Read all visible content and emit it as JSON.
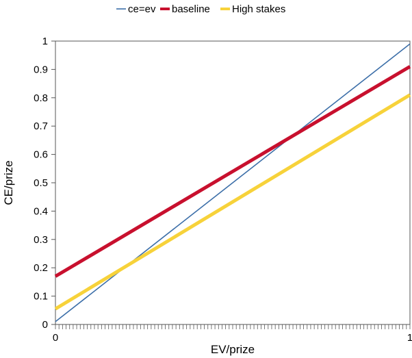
{
  "chart_data": {
    "type": "line",
    "xlabel": "EV/prize",
    "ylabel": "CE/prize",
    "xlim": [
      0,
      1
    ],
    "ylim": [
      0,
      1
    ],
    "x_tick_labels": [
      "0",
      "1"
    ],
    "y_tick_labels": [
      "0",
      "0.1",
      "0.2",
      "0.3",
      "0.4",
      "0.5",
      "0.6",
      "0.7",
      "0.8",
      "0.9",
      "1"
    ],
    "grid": false,
    "legend_position": "top",
    "series": [
      {
        "name": "ce=ev",
        "color": "#3b6ea8",
        "x": [
          0,
          1
        ],
        "values": [
          0.01,
          0.99
        ]
      },
      {
        "name": "baseline",
        "color": "#c8102e",
        "x": [
          0,
          1
        ],
        "values": [
          0.17,
          0.91
        ]
      },
      {
        "name": "High stakes",
        "color": "#f7d23a",
        "x": [
          0,
          1
        ],
        "values": [
          0.055,
          0.81
        ]
      }
    ]
  }
}
